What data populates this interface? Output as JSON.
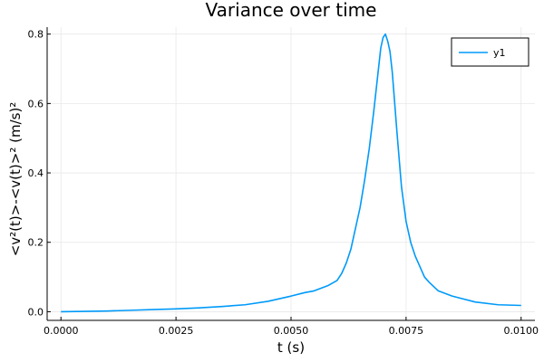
{
  "colors": {
    "series": "#009AF9",
    "grid": "#E8E8E8",
    "axis": "#000000"
  },
  "chart_data": {
    "type": "line",
    "title": "Variance over time",
    "xlabel": "t (s)",
    "ylabel": "<v²(t)>-<v(t)>² (m/s)²",
    "xlim": [
      -0.0003,
      0.0103
    ],
    "ylim": [
      -0.025,
      0.82
    ],
    "xticks": [
      0.0,
      0.0025,
      0.005,
      0.0075,
      0.01
    ],
    "xtick_labels": [
      "0.0000",
      "0.0025",
      "0.0050",
      "0.0075",
      "0.0100"
    ],
    "yticks": [
      0.0,
      0.2,
      0.4,
      0.6,
      0.8
    ],
    "ytick_labels": [
      "0.0",
      "0.2",
      "0.4",
      "0.6",
      "0.8"
    ],
    "grid": true,
    "legend": {
      "position": "top-right"
    },
    "series": [
      {
        "name": "y1",
        "x": [
          0.0,
          0.0005,
          0.001,
          0.0015,
          0.002,
          0.0025,
          0.003,
          0.0035,
          0.004,
          0.0045,
          0.005,
          0.0053,
          0.0055,
          0.0058,
          0.006,
          0.0061,
          0.0062,
          0.0063,
          0.0064,
          0.0065,
          0.0066,
          0.0067,
          0.0068,
          0.0069,
          0.00695,
          0.007,
          0.00705,
          0.0071,
          0.00715,
          0.0072,
          0.0073,
          0.0074,
          0.0075,
          0.0076,
          0.0077,
          0.0078,
          0.0079,
          0.008,
          0.0082,
          0.0085,
          0.009,
          0.0095,
          0.01
        ],
        "y": [
          0.0,
          0.001,
          0.002,
          0.004,
          0.006,
          0.008,
          0.011,
          0.015,
          0.02,
          0.03,
          0.045,
          0.055,
          0.06,
          0.075,
          0.09,
          0.11,
          0.14,
          0.18,
          0.24,
          0.3,
          0.38,
          0.47,
          0.58,
          0.7,
          0.76,
          0.79,
          0.8,
          0.78,
          0.75,
          0.69,
          0.52,
          0.36,
          0.26,
          0.2,
          0.16,
          0.13,
          0.1,
          0.085,
          0.06,
          0.045,
          0.028,
          0.02,
          0.018
        ]
      }
    ]
  }
}
